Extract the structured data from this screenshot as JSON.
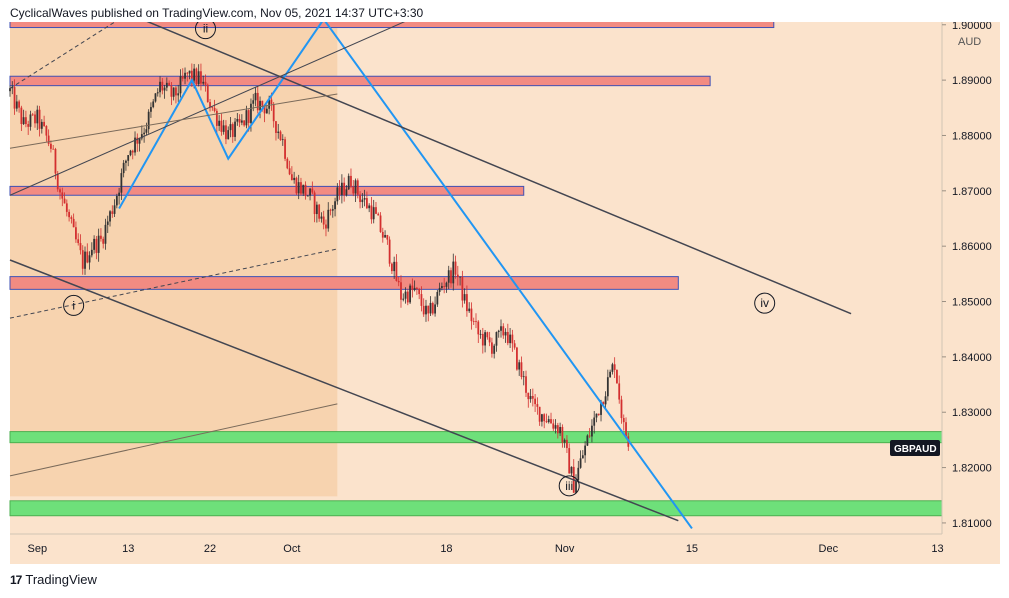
{
  "header": {
    "publisher": "CyclicalWaves published on TradingView.com, Nov 05, 2021 14:37 UTC+3:30"
  },
  "footer": {
    "brand": "TradingView"
  },
  "chart_data": {
    "type": "candlestick",
    "symbol": "GBPAUD",
    "currency": "AUD",
    "last_price_label": "GBPAUD",
    "ylim": [
      1.808,
      1.9005
    ],
    "y_ticks": [
      "1.90000",
      "1.89000",
      "1.88000",
      "1.87000",
      "1.86000",
      "1.85000",
      "1.84000",
      "1.83000",
      "1.82000",
      "1.81000"
    ],
    "y_tick_values": [
      1.9,
      1.89,
      1.88,
      1.87,
      1.86,
      1.85,
      1.84,
      1.83,
      1.82,
      1.81
    ],
    "x_ticks": [
      {
        "label": "Sep",
        "day": 3
      },
      {
        "label": "13",
        "day": 13
      },
      {
        "label": "22",
        "day": 22
      },
      {
        "label": "Oct",
        "day": 31
      },
      {
        "label": "18",
        "day": 48
      },
      {
        "label": "Nov",
        "day": 61
      },
      {
        "label": "15",
        "day": 75
      },
      {
        "label": "Dec",
        "day": 90
      },
      {
        "label": "13",
        "day": 102
      }
    ],
    "xlim_days": [
      0,
      102.5
    ],
    "support_resistance_zones": [
      {
        "color": "#f28b82",
        "from": 1.8995,
        "to": 1.9012,
        "day_end": 84
      },
      {
        "color": "#f28b82",
        "from": 1.889,
        "to": 1.8907,
        "day_end": 77
      },
      {
        "color": "#f28b82",
        "from": 1.8692,
        "to": 1.8708,
        "day_end": 56.5
      },
      {
        "color": "#f28b82",
        "from": 1.8522,
        "to": 1.8545,
        "day_end": 73.5
      },
      {
        "color": "#6ee07a",
        "from": 1.8245,
        "to": 1.8265,
        "day_end": 102.5
      },
      {
        "color": "#6ee07a",
        "from": 1.8113,
        "to": 1.814,
        "day_end": 102.5
      }
    ],
    "wave_labels": [
      {
        "label": "ii",
        "day": 21.5,
        "price": 1.8993
      },
      {
        "label": "i",
        "day": 7,
        "price": 1.8493
      },
      {
        "label": "iii",
        "day": 61.5,
        "price": 1.8167
      },
      {
        "label": "iv",
        "day": 83,
        "price": 1.8497
      }
    ],
    "trend_lines": [
      {
        "color": "#2196f3",
        "width": 2,
        "points": [
          [
            12,
            1.8668
          ],
          [
            20,
            1.89
          ],
          [
            24,
            1.8758
          ],
          [
            34.5,
            1.901
          ],
          [
            75,
            1.809
          ]
        ]
      },
      {
        "color": "#434651",
        "width": 1.5,
        "points": [
          [
            14.5,
            1.901
          ],
          [
            92.5,
            1.8478
          ]
        ]
      },
      {
        "color": "#434651",
        "width": 1.5,
        "points": [
          [
            0,
            1.8575
          ],
          [
            73.5,
            1.8104
          ]
        ]
      },
      {
        "color": "#434651",
        "width": 1,
        "points": [
          [
            0,
            1.8692
          ],
          [
            44,
            1.901
          ]
        ]
      },
      {
        "color": "#7a6a5a",
        "width": 1,
        "points": [
          [
            0,
            1.8777
          ],
          [
            36,
            1.8875
          ]
        ]
      },
      {
        "color": "#7a6a5a",
        "width": 1,
        "points": [
          [
            0,
            1.8185
          ],
          [
            36,
            1.8315
          ]
        ]
      }
    ],
    "dashed_lines": [
      {
        "points": [
          [
            0,
            1.8885
          ],
          [
            12,
            1.901
          ]
        ]
      },
      {
        "points": [
          [
            0,
            1.847
          ],
          [
            36,
            1.8595
          ]
        ]
      }
    ],
    "shaded_region": {
      "day_start": 0,
      "day_end": 36,
      "from": 1.8148,
      "to": 1.901
    },
    "price_anchors": [
      [
        0,
        1.888
      ],
      [
        1.5,
        1.882
      ],
      [
        3,
        1.883
      ],
      [
        4.5,
        1.878
      ],
      [
        5.5,
        1.87
      ],
      [
        7,
        1.862
      ],
      [
        8,
        1.857
      ],
      [
        9,
        1.86
      ],
      [
        10,
        1.861
      ],
      [
        11.5,
        1.868
      ],
      [
        13,
        1.877
      ],
      [
        15,
        1.882
      ],
      [
        16.5,
        1.889
      ],
      [
        18,
        1.887
      ],
      [
        19.5,
        1.891
      ],
      [
        21,
        1.89
      ],
      [
        22.5,
        1.884
      ],
      [
        24,
        1.88
      ],
      [
        25.5,
        1.882
      ],
      [
        27,
        1.886
      ],
      [
        28.5,
        1.885
      ],
      [
        30,
        1.879
      ],
      [
        31,
        1.872
      ],
      [
        33,
        1.869
      ],
      [
        34.5,
        1.864
      ],
      [
        36,
        1.869
      ],
      [
        37.5,
        1.872
      ],
      [
        38.5,
        1.869
      ],
      [
        40,
        1.866
      ],
      [
        41.5,
        1.86
      ],
      [
        43,
        1.851
      ],
      [
        44.5,
        1.852
      ],
      [
        46,
        1.847
      ],
      [
        47.5,
        1.853
      ],
      [
        49,
        1.856
      ],
      [
        50,
        1.85
      ],
      [
        51.5,
        1.844
      ],
      [
        53,
        1.842
      ],
      [
        54.5,
        1.845
      ],
      [
        56,
        1.838
      ],
      [
        57.5,
        1.831
      ],
      [
        59,
        1.829
      ],
      [
        60.5,
        1.827
      ],
      [
        62,
        1.817
      ],
      [
        63.5,
        1.825
      ],
      [
        65,
        1.832
      ],
      [
        66.5,
        1.839
      ],
      [
        67.5,
        1.827
      ],
      [
        68,
        1.825
      ]
    ]
  }
}
